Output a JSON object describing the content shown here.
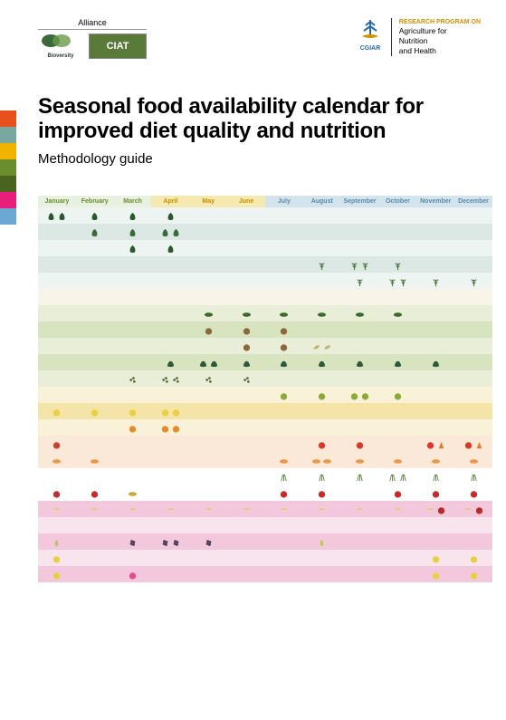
{
  "logos": {
    "alliance_label": "Alliance",
    "bioversity_name": "Bioversity International",
    "ciat_name": "CIAT",
    "cgiar_name": "CGIAR",
    "cgiar_rp": "RESEARCH PROGRAM ON",
    "cgiar_line1": "Agriculture for",
    "cgiar_line2": "Nutrition",
    "cgiar_line3": "and Health"
  },
  "title": "Seasonal food availability calendar for improved diet quality and nutrition",
  "subtitle": "Methodology guide",
  "tab_colors": [
    "#e8501e",
    "#7aa8a0",
    "#f0b400",
    "#6a8e2e",
    "#4a6420",
    "#e81e7a",
    "#6ca8d4"
  ],
  "months": [
    "January",
    "February",
    "March",
    "April",
    "May",
    "June",
    "July",
    "August",
    "September",
    "October",
    "November",
    "December"
  ],
  "month_bg": [
    "#e8f0e0",
    "#e8f0e0",
    "#e8f0e0",
    "#f5e8b0",
    "#f5e8b0",
    "#f5e8b0",
    "#d4e4ec",
    "#d4e4ec",
    "#d4e4ec",
    "#d4e4ec",
    "#d4e4ec",
    "#d4e4ec"
  ],
  "month_fg": [
    "#6a8e2e",
    "#6a8e2e",
    "#6a8e2e",
    "#c49000",
    "#c49000",
    "#c49000",
    "#5a8aa8",
    "#5a8aa8",
    "#5a8aa8",
    "#5a8aa8",
    "#5a8aa8",
    "#5a8aa8"
  ],
  "band_colors": {
    "teal_lt": "#eef4f2",
    "teal": "#dce8e4",
    "cream": "#f8f4e8",
    "green_lt": "#e8eed8",
    "green": "#d8e4c0",
    "yellow_lt": "#faf2d8",
    "yellow": "#f4e4a8",
    "orange_lt": "#fae8d8",
    "pink_lt": "#f8e4ec",
    "pink": "#f4c8dc",
    "white": "#ffffff"
  },
  "food_icons": {
    "leaf": {
      "color": "#2a5a2a",
      "shape": "leaf"
    },
    "leaf2": {
      "color": "#3a6a3a",
      "shape": "leaf"
    },
    "herb": {
      "color": "#4a7a3a",
      "shape": "herb"
    },
    "cucumber": {
      "color": "#3a6a2a",
      "shape": "oval"
    },
    "nut": {
      "color": "#8a6a3a",
      "shape": "circle"
    },
    "bean": {
      "color": "#c4b070",
      "shape": "pod"
    },
    "kale": {
      "color": "#2a5a3a",
      "shape": "leafy"
    },
    "olive": {
      "color": "#5a6a3a",
      "shape": "dots"
    },
    "lemon": {
      "color": "#e8d040",
      "shape": "circle"
    },
    "lime": {
      "color": "#8aaa3a",
      "shape": "circle"
    },
    "orange": {
      "color": "#e88a2a",
      "shape": "circle"
    },
    "tomato": {
      "color": "#d83a2a",
      "shape": "circle"
    },
    "carrot": {
      "color": "#e87a2a",
      "shape": "triangle"
    },
    "papaya": {
      "color": "#e89a4a",
      "shape": "oval"
    },
    "chive": {
      "color": "#5a8a3a",
      "shape": "lines"
    },
    "apple": {
      "color": "#c82a2a",
      "shape": "circle"
    },
    "mango": {
      "color": "#c8aa3a",
      "shape": "oval"
    },
    "banana": {
      "color": "#e8d040",
      "shape": "crescent"
    },
    "cherry": {
      "color": "#b82a2a",
      "shape": "circle"
    },
    "grape": {
      "color": "#4a3a5a",
      "shape": "cluster"
    },
    "pinkfruit": {
      "color": "#e84a8a",
      "shape": "circle"
    },
    "pear": {
      "color": "#b8c85a",
      "shape": "pear"
    }
  },
  "rows": [
    {
      "band": "teal_lt",
      "cells": [
        [
          "leaf",
          "leaf"
        ],
        [
          "leaf"
        ],
        [
          "leaf"
        ],
        [
          "leaf"
        ],
        [],
        [],
        [],
        [],
        [],
        [],
        [],
        []
      ]
    },
    {
      "band": "teal",
      "cells": [
        [],
        [
          "leaf2"
        ],
        [
          "leaf2"
        ],
        [
          "leaf2",
          "leaf2"
        ],
        [],
        [],
        [],
        [],
        [],
        [],
        [],
        []
      ]
    },
    {
      "band": "teal_lt",
      "cells": [
        [],
        [],
        [
          "leaf"
        ],
        [
          "leaf"
        ],
        [],
        [],
        [],
        [],
        [],
        [],
        [],
        []
      ]
    },
    {
      "band": "teal",
      "cells": [
        [],
        [],
        [],
        [],
        [],
        [],
        [],
        [
          "herb"
        ],
        [
          "herb",
          "herb"
        ],
        [
          "herb"
        ],
        [],
        []
      ]
    },
    {
      "band": "teal_lt",
      "cells": [
        [],
        [],
        [],
        [],
        [],
        [],
        [],
        [],
        [
          "herb"
        ],
        [
          "herb",
          "herb"
        ],
        [
          "herb"
        ],
        [
          "herb"
        ]
      ]
    },
    {
      "band": "cream",
      "cells": [
        [],
        [],
        [],
        [],
        [],
        [],
        [],
        [],
        [],
        [],
        [],
        []
      ]
    },
    {
      "band": "green_lt",
      "cells": [
        [],
        [],
        [],
        [],
        [
          "cucumber"
        ],
        [
          "cucumber"
        ],
        [
          "cucumber"
        ],
        [
          "cucumber"
        ],
        [
          "cucumber"
        ],
        [
          "cucumber"
        ],
        [],
        []
      ]
    },
    {
      "band": "green",
      "cells": [
        [],
        [],
        [],
        [],
        [
          "nut"
        ],
        [
          "nut"
        ],
        [
          "nut"
        ],
        [],
        [],
        [],
        [],
        []
      ]
    },
    {
      "band": "green_lt",
      "cells": [
        [],
        [],
        [],
        [],
        [],
        [
          "nut"
        ],
        [
          "nut"
        ],
        [
          "bean",
          "bean"
        ],
        [],
        [],
        [],
        []
      ]
    },
    {
      "band": "green",
      "cells": [
        [],
        [],
        [],
        [
          "kale"
        ],
        [
          "kale",
          "kale"
        ],
        [
          "kale"
        ],
        [
          "kale"
        ],
        [
          "kale"
        ],
        [
          "kale"
        ],
        [
          "kale"
        ],
        [
          "kale"
        ],
        []
      ]
    },
    {
      "band": "green_lt",
      "cells": [
        [],
        [],
        [
          "olive"
        ],
        [
          "olive",
          "olive"
        ],
        [
          "olive"
        ],
        [
          "olive"
        ],
        [],
        [],
        [],
        [],
        [],
        []
      ]
    },
    {
      "band": "yellow_lt",
      "cells": [
        [],
        [],
        [],
        [],
        [],
        [],
        [
          "lime"
        ],
        [
          "lime"
        ],
        [
          "lime",
          "lime"
        ],
        [
          "lime"
        ],
        [],
        []
      ]
    },
    {
      "band": "yellow",
      "cells": [
        [
          "lemon"
        ],
        [
          "lemon"
        ],
        [
          "lemon"
        ],
        [
          "lemon",
          "lemon"
        ],
        [],
        [],
        [],
        [],
        [],
        [],
        [],
        []
      ]
    },
    {
      "band": "yellow_lt",
      "cells": [
        [],
        [],
        [
          "orange"
        ],
        [
          "orange",
          "orange"
        ],
        [],
        [],
        [],
        [],
        [],
        [],
        [],
        []
      ]
    },
    {
      "band": "orange_lt",
      "cells": [
        [
          "tomato"
        ],
        [],
        [],
        [],
        [],
        [],
        [],
        [
          "tomato"
        ],
        [
          "tomato"
        ],
        [],
        [
          "tomato",
          "carrot"
        ],
        [
          "tomato",
          "carrot"
        ]
      ]
    },
    {
      "band": "orange_lt",
      "cells": [
        [
          "papaya"
        ],
        [
          "papaya"
        ],
        [],
        [],
        [],
        [],
        [
          "papaya"
        ],
        [
          "papaya",
          "papaya"
        ],
        [
          "papaya"
        ],
        [
          "papaya"
        ],
        [
          "papaya"
        ],
        [
          "papaya"
        ]
      ]
    },
    {
      "band": "white",
      "cells": [
        [],
        [],
        [],
        [],
        [],
        [],
        [
          "chive"
        ],
        [
          "chive"
        ],
        [
          "chive"
        ],
        [
          "chive",
          "chive"
        ],
        [
          "chive"
        ],
        [
          "chive"
        ]
      ]
    },
    {
      "band": "white",
      "cells": [
        [
          "apple"
        ],
        [
          "apple"
        ],
        [
          "mango"
        ],
        [],
        [],
        [],
        [
          "apple"
        ],
        [
          "apple"
        ],
        [],
        [
          "apple"
        ],
        [
          "apple"
        ],
        [
          "apple"
        ]
      ]
    },
    {
      "band": "pink",
      "cells": [
        [
          "banana"
        ],
        [
          "banana"
        ],
        [
          "banana"
        ],
        [
          "banana"
        ],
        [
          "banana"
        ],
        [
          "banana"
        ],
        [
          "banana"
        ],
        [
          "banana"
        ],
        [
          "banana"
        ],
        [
          "banana"
        ],
        [
          "banana",
          "cherry"
        ],
        [
          "banana",
          "cherry"
        ]
      ]
    },
    {
      "band": "pink_lt",
      "cells": [
        [],
        [],
        [],
        [],
        [],
        [],
        [],
        [],
        [],
        [],
        [],
        []
      ]
    },
    {
      "band": "pink",
      "cells": [
        [
          "pear"
        ],
        [],
        [
          "grape"
        ],
        [
          "grape",
          "grape"
        ],
        [
          "grape"
        ],
        [],
        [],
        [
          "pear"
        ],
        [],
        [],
        [],
        []
      ]
    },
    {
      "band": "pink_lt",
      "cells": [
        [
          "lemon"
        ],
        [],
        [],
        [],
        [],
        [],
        [],
        [],
        [],
        [],
        [
          "lemon"
        ],
        [
          "lemon"
        ]
      ]
    },
    {
      "band": "pink",
      "cells": [
        [
          "lemon"
        ],
        [],
        [
          "pinkfruit"
        ],
        [],
        [],
        [],
        [],
        [],
        [],
        [],
        [
          "lemon"
        ],
        [
          "lemon"
        ]
      ]
    }
  ]
}
